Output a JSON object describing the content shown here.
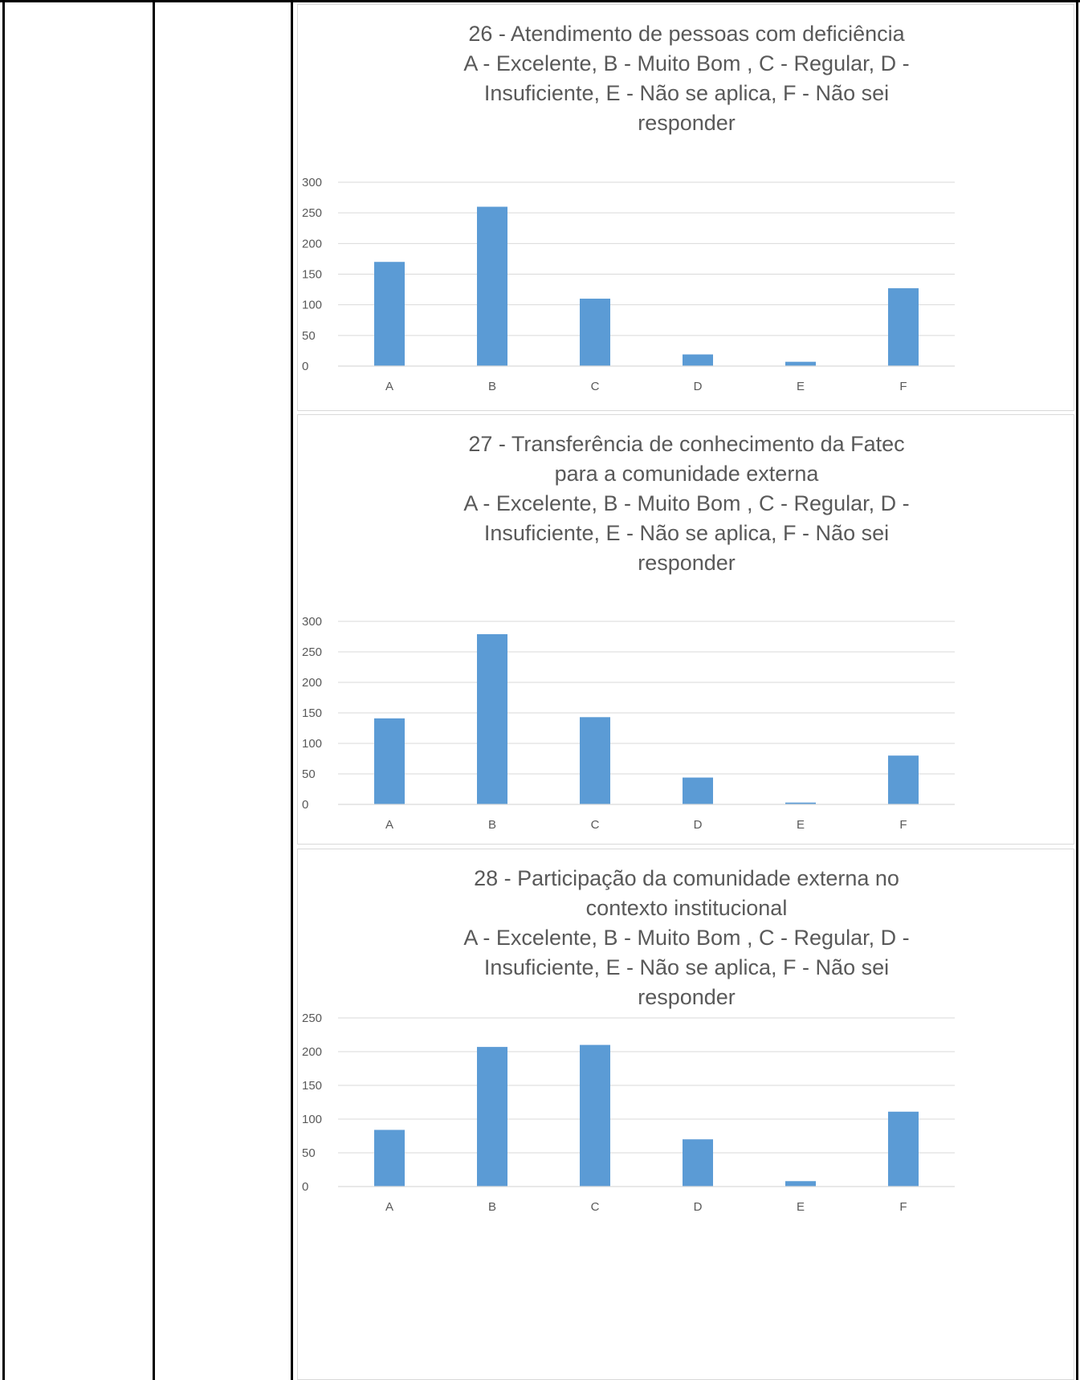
{
  "colors": {
    "bar": "#5b9bd5",
    "text": "#595959",
    "grid": "#d9d9d9",
    "table_border": "#000000"
  },
  "chart_data": [
    {
      "type": "bar",
      "title_lines": [
        "26 - Atendimento de pessoas com deficiência",
        "A - Excelente, B - Muito Bom , C - Regular, D -",
        "Insuficiente, E - Não se aplica, F - Não sei",
        "responder"
      ],
      "categories": [
        "A",
        "B",
        "C",
        "D",
        "E",
        "F"
      ],
      "values": [
        170,
        260,
        110,
        19,
        7,
        127
      ],
      "ylim": [
        0,
        300
      ],
      "yticks": [
        0,
        50,
        100,
        150,
        200,
        250,
        300
      ],
      "grid": true
    },
    {
      "type": "bar",
      "title_lines": [
        "27 - Transferência de conhecimento da Fatec",
        "para a comunidade externa",
        "A - Excelente, B - Muito Bom , C - Regular, D -",
        "Insuficiente, E - Não se aplica, F - Não sei",
        "responder"
      ],
      "categories": [
        "A",
        "B",
        "C",
        "D",
        "E",
        "F"
      ],
      "values": [
        141,
        279,
        143,
        44,
        3,
        80
      ],
      "ylim": [
        0,
        300
      ],
      "yticks": [
        0,
        50,
        100,
        150,
        200,
        250,
        300
      ],
      "grid": true
    },
    {
      "type": "bar",
      "title_lines": [
        "28 - Participação da comunidade externa no",
        "contexto institucional",
        "A - Excelente, B - Muito Bom , C - Regular, D -",
        "Insuficiente, E - Não se aplica, F - Não sei",
        "responder"
      ],
      "categories": [
        "A",
        "B",
        "C",
        "D",
        "E",
        "F"
      ],
      "values": [
        84,
        207,
        210,
        70,
        8,
        111
      ],
      "ylim": [
        0,
        250
      ],
      "yticks": [
        0,
        50,
        100,
        150,
        200,
        250
      ],
      "grid": true
    }
  ]
}
